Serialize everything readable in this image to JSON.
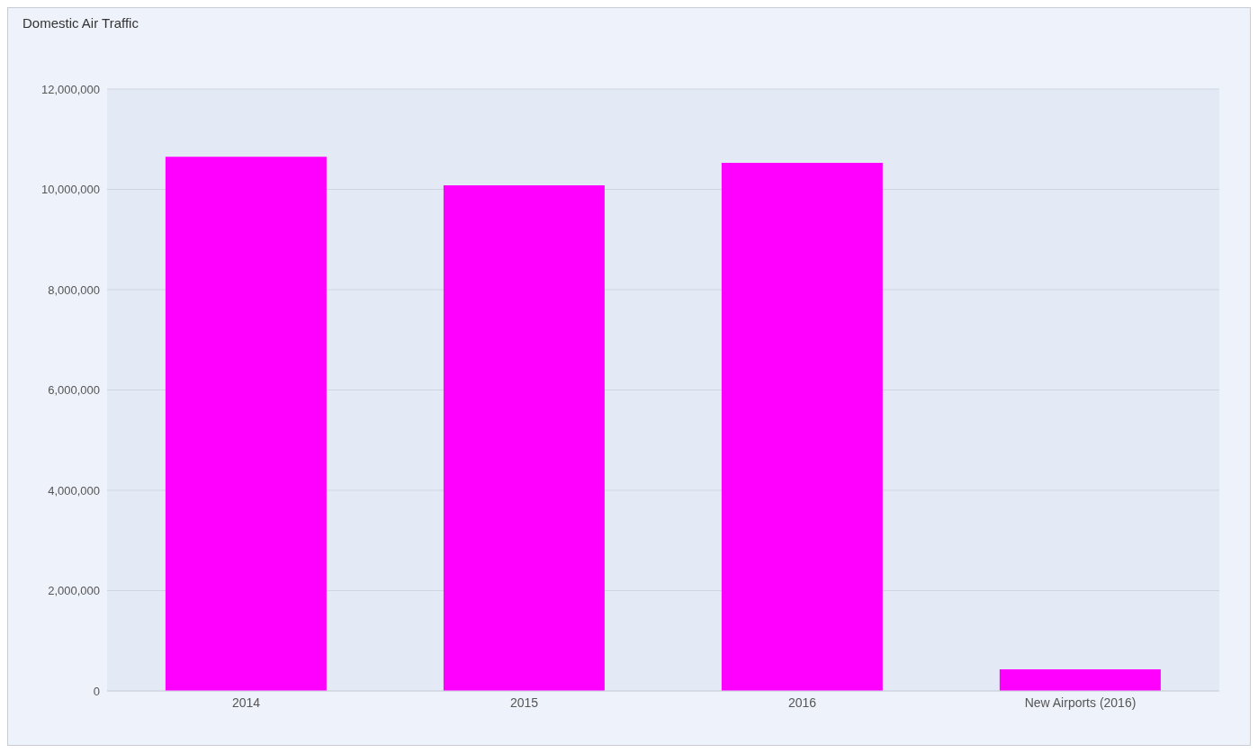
{
  "chart_data": {
    "type": "bar",
    "title": "Domestic  Air  Traffic",
    "categories": [
      "2014",
      "2015",
      "2016",
      "New Airports (2016)"
    ],
    "values": [
      10650000,
      10080000,
      10530000,
      430000
    ],
    "color": "#ff00ff",
    "ylim": [
      0,
      12000000
    ],
    "yticks": [
      0,
      {
        "value": 2000000,
        "label": "2,000,000"
      },
      {
        "value": 4000000,
        "label": "4,000,000"
      },
      {
        "value": 6000000,
        "label": "6,000,000"
      },
      {
        "value": 8000000,
        "label": "8,000,000"
      },
      {
        "value": 10000000,
        "label": "10,000,000"
      },
      {
        "value": 12000000,
        "label": "12,000,000"
      }
    ],
    "grid": "y"
  }
}
